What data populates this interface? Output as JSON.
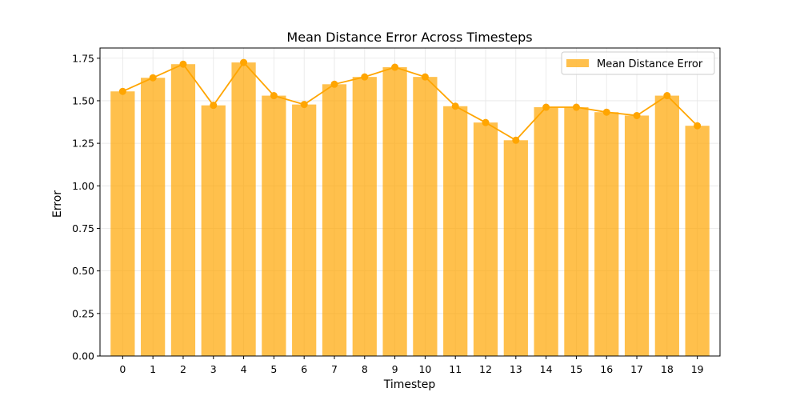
{
  "chart_data": {
    "type": "bar",
    "title": "Mean Distance Error Across Timesteps",
    "xlabel": "Timestep",
    "ylabel": "Error",
    "categories": [
      "0",
      "1",
      "2",
      "3",
      "4",
      "5",
      "6",
      "7",
      "8",
      "9",
      "10",
      "11",
      "12",
      "13",
      "14",
      "15",
      "16",
      "17",
      "18",
      "19"
    ],
    "series": [
      {
        "name": "Mean Distance Error",
        "kind": "bar",
        "color": "#ffa500",
        "opacity": 0.7,
        "values": [
          1.555,
          1.635,
          1.715,
          1.473,
          1.725,
          1.53,
          1.478,
          1.597,
          1.64,
          1.697,
          1.64,
          1.468,
          1.372,
          1.268,
          1.462,
          1.462,
          1.433,
          1.413,
          1.53,
          1.353
        ]
      },
      {
        "kind": "line",
        "color": "#ffa500",
        "values": [
          1.555,
          1.635,
          1.715,
          1.473,
          1.725,
          1.53,
          1.478,
          1.597,
          1.64,
          1.697,
          1.64,
          1.468,
          1.372,
          1.268,
          1.462,
          1.462,
          1.433,
          1.413,
          1.53,
          1.353
        ]
      }
    ],
    "ylim": [
      0,
      1.81
    ],
    "yticks": [
      0.0,
      0.25,
      0.5,
      0.75,
      1.0,
      1.25,
      1.5,
      1.75
    ],
    "ytick_labels": [
      "0.00",
      "0.25",
      "0.50",
      "0.75",
      "1.00",
      "1.25",
      "1.50",
      "1.75"
    ],
    "grid": true,
    "legend_position": "top-right"
  }
}
